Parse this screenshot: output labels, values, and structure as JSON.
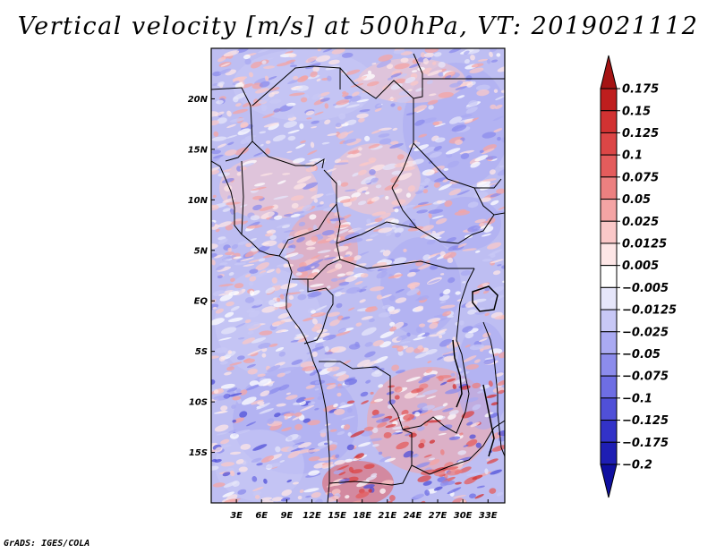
{
  "title": "Vertical velocity [m/s] at 500hPa, VT: 2019021112",
  "credit": "GrADS: IGES/COLA",
  "map": {
    "variable": "Vertical velocity",
    "units": "m/s",
    "level": "500hPa",
    "valid_time": "2019021112",
    "lon_range": [
      0,
      35
    ],
    "lat_range": [
      -20,
      25
    ],
    "x_ticks": [
      {
        "value": 3,
        "label": "3E"
      },
      {
        "value": 6,
        "label": "6E"
      },
      {
        "value": 9,
        "label": "9E"
      },
      {
        "value": 12,
        "label": "12E"
      },
      {
        "value": 15,
        "label": "15E"
      },
      {
        "value": 18,
        "label": "18E"
      },
      {
        "value": 21,
        "label": "21E"
      },
      {
        "value": 24,
        "label": "24E"
      },
      {
        "value": 27,
        "label": "27E"
      },
      {
        "value": 30,
        "label": "30E"
      },
      {
        "value": 33,
        "label": "33E"
      }
    ],
    "y_ticks": [
      {
        "value": 20,
        "label": "20N"
      },
      {
        "value": 15,
        "label": "15N"
      },
      {
        "value": 10,
        "label": "10N"
      },
      {
        "value": 5,
        "label": "5N"
      },
      {
        "value": 0,
        "label": "EQ"
      },
      {
        "value": -5,
        "label": "5S"
      },
      {
        "value": -10,
        "label": "10S"
      },
      {
        "value": -15,
        "label": "15S"
      }
    ]
  },
  "colorbar": {
    "labels": [
      "0.175",
      "0.15",
      "0.125",
      "0.1",
      "0.075",
      "0.05",
      "0.025",
      "0.0125",
      "0.005",
      "−0.005",
      "−0.0125",
      "−0.025",
      "−0.05",
      "−0.075",
      "−0.1",
      "−0.125",
      "−0.175",
      "−0.2"
    ],
    "colors": [
      "#a51414",
      "#be1e1e",
      "#d23232",
      "#dc4646",
      "#e45c5c",
      "#ec8080",
      "#f4a4a4",
      "#fac8c8",
      "#fde6e6",
      "#ffffff",
      "#e6e6fa",
      "#c8c8f6",
      "#aaaaf2",
      "#8c8cec",
      "#6e6ee4",
      "#5050d8",
      "#3232c8",
      "#1e1eb4",
      "#0f0fa0"
    ]
  }
}
